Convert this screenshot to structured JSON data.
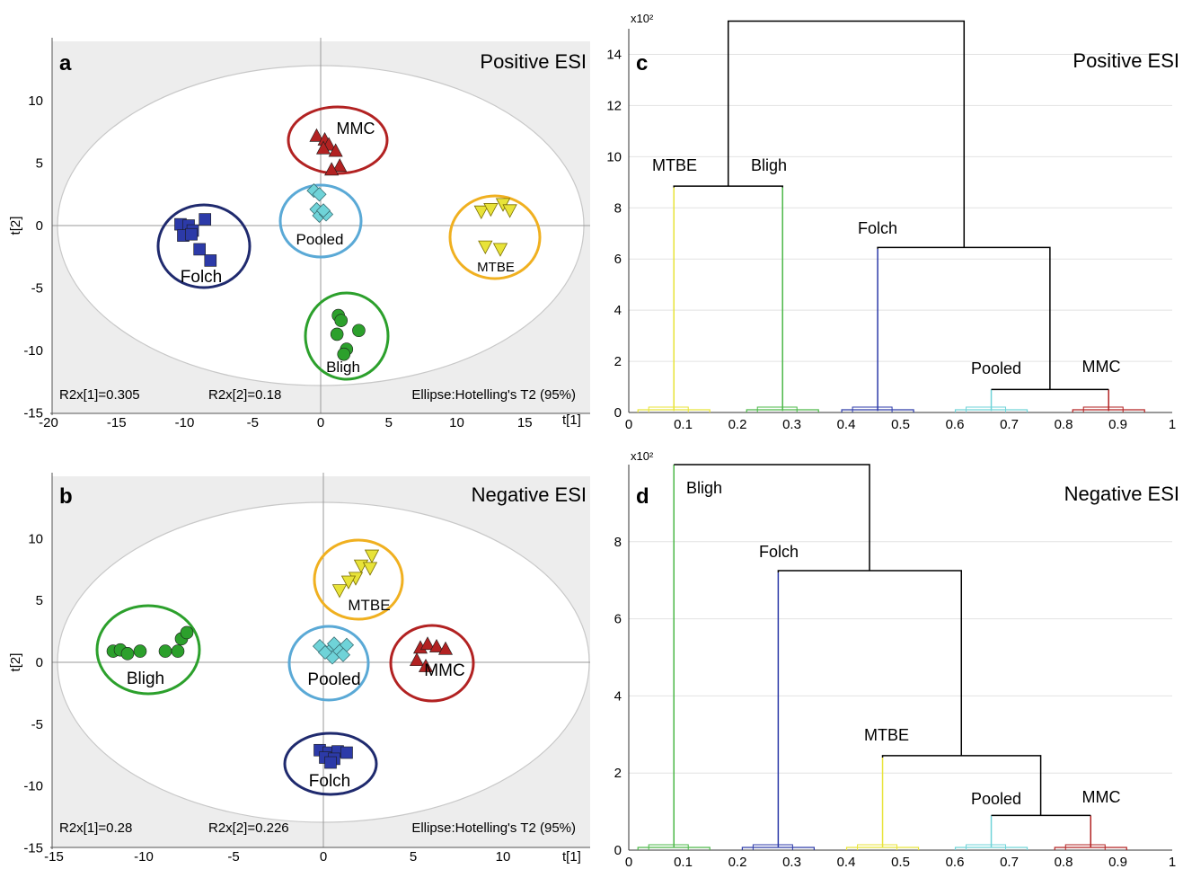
{
  "chart_data": [
    {
      "panel": "a",
      "title": "Positive ESI",
      "type": "scatter",
      "xlabel": "t[1]",
      "ylabel": "t[2]",
      "xlim": [
        -20,
        20
      ],
      "ylim": [
        -15,
        15
      ],
      "xticks": [
        -20,
        -15,
        -10,
        -5,
        0,
        5,
        10,
        15
      ],
      "yticks": [
        -15,
        -10,
        -5,
        0,
        5,
        10
      ],
      "grid": false,
      "notes": [
        "R2x[1]=0.305",
        "R2x[2]=0.18",
        "Ellipse:Hotelling's T2 (95%)"
      ],
      "series": [
        {
          "name": "MMC",
          "color": "#b22222",
          "marker": "triangle",
          "x": [
            -0.3,
            0.3,
            0.6,
            0.2,
            1.1,
            1.4,
            0.8
          ],
          "y": [
            7.2,
            6.9,
            6.5,
            6.2,
            6.0,
            4.8,
            4.5
          ]
        },
        {
          "name": "Pooled",
          "color": "#6fd3d8",
          "marker": "diamond",
          "x": [
            -0.5,
            -0.1,
            -0.3,
            -0.1,
            0.4,
            0.2
          ],
          "y": [
            2.8,
            2.5,
            1.3,
            0.8,
            0.9,
            1.2
          ]
        },
        {
          "name": "Folch",
          "color": "#2c3aa8",
          "marker": "square",
          "x": [
            -10.3,
            -9.7,
            -9.4,
            -8.5,
            -10.1,
            -9.5,
            -8.9,
            -8.1
          ],
          "y": [
            0.1,
            0.0,
            -0.4,
            0.5,
            -0.8,
            -0.7,
            -1.9,
            -2.8
          ]
        },
        {
          "name": "MTBE",
          "color": "#e8e339",
          "marker": "triangle-down",
          "x": [
            11.8,
            12.5,
            13.4,
            13.9,
            12.1,
            13.2
          ],
          "y": [
            1.1,
            1.3,
            1.7,
            1.2,
            -1.7,
            -1.9
          ]
        },
        {
          "name": "Bligh",
          "color": "#2ca02c",
          "marker": "circle",
          "x": [
            1.3,
            1.5,
            2.8,
            1.2,
            1.9,
            1.7
          ],
          "y": [
            -7.2,
            -7.6,
            -8.4,
            -8.7,
            -9.9,
            -10.3
          ]
        }
      ]
    },
    {
      "panel": "b",
      "title": "Negative ESI",
      "type": "scatter",
      "xlabel": "t[1]",
      "ylabel": "t[2]",
      "xlim": [
        -15,
        15
      ],
      "ylim": [
        -15,
        15
      ],
      "xticks": [
        -15,
        -10,
        -5,
        0,
        5,
        10
      ],
      "yticks": [
        -15,
        -10,
        -5,
        0,
        5,
        10
      ],
      "grid": false,
      "notes": [
        "R2x[1]=0.28",
        "R2x[2]=0.226",
        "Ellipse:Hotelling's T2 (95%)"
      ],
      "series": [
        {
          "name": "MTBE",
          "color": "#e8e339",
          "marker": "triangle-down",
          "x": [
            2.7,
            2.1,
            2.6,
            1.8,
            1.4,
            0.9
          ],
          "y": [
            8.6,
            7.8,
            7.6,
            6.8,
            6.5,
            5.8
          ]
        },
        {
          "name": "Bligh",
          "color": "#2ca02c",
          "marker": "circle",
          "x": [
            -11.7,
            -11.3,
            -10.9,
            -10.2,
            -8.8,
            -8.1,
            -7.9,
            -7.6
          ],
          "y": [
            0.9,
            1.0,
            0.7,
            0.9,
            0.9,
            0.9,
            1.9,
            2.4
          ]
        },
        {
          "name": "Pooled",
          "color": "#6fd3d8",
          "marker": "diamond",
          "x": [
            -0.2,
            0.4,
            0.6,
            0.9,
            1.3,
            1.1,
            0.5,
            0.1
          ],
          "y": [
            1.3,
            1.0,
            1.5,
            0.9,
            1.4,
            0.6,
            0.4,
            0.8
          ]
        },
        {
          "name": "MMC",
          "color": "#b22222",
          "marker": "triangle",
          "x": [
            5.4,
            5.8,
            6.3,
            6.8,
            5.2,
            5.7
          ],
          "y": [
            1.2,
            1.5,
            1.3,
            1.1,
            0.2,
            -0.3
          ]
        },
        {
          "name": "Folch",
          "color": "#2c3aa8",
          "marker": "square",
          "x": [
            -0.2,
            0.3,
            0.8,
            1.3,
            0.1,
            0.6,
            0.4
          ],
          "y": [
            -7.1,
            -7.3,
            -7.2,
            -7.3,
            -7.7,
            -7.8,
            -8.1
          ]
        }
      ]
    },
    {
      "panel": "c",
      "title": "Positive ESI",
      "type": "dendrogram",
      "y_multiplier_label": "x10²",
      "xlim": [
        0,
        1
      ],
      "ylim": [
        0,
        15
      ],
      "xticks": [
        0,
        0.1,
        0.2,
        0.3,
        0.4,
        0.5,
        0.6,
        0.7,
        0.8,
        0.9,
        1
      ],
      "yticks": [
        0,
        2,
        4,
        6,
        8,
        10,
        12,
        14
      ],
      "grid": true,
      "clusters": [
        {
          "name": "MTBE",
          "color": "#e8e339",
          "x": 0.083,
          "height": 8.8
        },
        {
          "name": "Bligh",
          "color": "#4cb848",
          "x": 0.283,
          "height": 8.8
        },
        {
          "name": "Folch",
          "color": "#2c3aa8",
          "x": 0.458,
          "height": 6.4
        },
        {
          "name": "Pooled",
          "color": "#6fd3d8",
          "x": 0.667,
          "height": 0.9
        },
        {
          "name": "MMC",
          "color": "#b22222",
          "x": 0.883,
          "height": 0.9
        }
      ],
      "merges": [
        {
          "left_x": 0.083,
          "right_x": 0.283,
          "height": 8.85
        },
        {
          "left_x": 0.667,
          "right_x": 0.883,
          "height": 0.9
        },
        {
          "left_x": 0.458,
          "right_x": 0.775,
          "height": 6.45
        },
        {
          "left_x": 0.183,
          "right_x": 0.617,
          "height": 15.3
        }
      ]
    },
    {
      "panel": "d",
      "title": "Negative ESI",
      "type": "dendrogram",
      "y_multiplier_label": "x10²",
      "xlim": [
        0,
        1
      ],
      "ylim": [
        0,
        10
      ],
      "xticks": [
        0,
        0.1,
        0.2,
        0.3,
        0.4,
        0.5,
        0.6,
        0.7,
        0.8,
        0.9,
        1
      ],
      "yticks": [
        0,
        2,
        4,
        6,
        8
      ],
      "grid": true,
      "clusters": [
        {
          "name": "Bligh",
          "color": "#4cb848",
          "x": 0.083,
          "height": 10.0
        },
        {
          "name": "Folch",
          "color": "#2c3aa8",
          "x": 0.275,
          "height": 7.2
        },
        {
          "name": "MTBE",
          "color": "#e8e339",
          "x": 0.467,
          "height": 2.4
        },
        {
          "name": "Pooled",
          "color": "#6fd3d8",
          "x": 0.667,
          "height": 0.9
        },
        {
          "name": "MMC",
          "color": "#b22222",
          "x": 0.85,
          "height": 0.9
        }
      ],
      "merges": [
        {
          "left_x": 0.667,
          "right_x": 0.85,
          "height": 0.9
        },
        {
          "left_x": 0.467,
          "right_x": 0.758,
          "height": 2.45
        },
        {
          "left_x": 0.275,
          "right_x": 0.612,
          "height": 7.25
        },
        {
          "left_x": 0.083,
          "right_x": 0.443,
          "height": 10.0
        }
      ]
    }
  ]
}
